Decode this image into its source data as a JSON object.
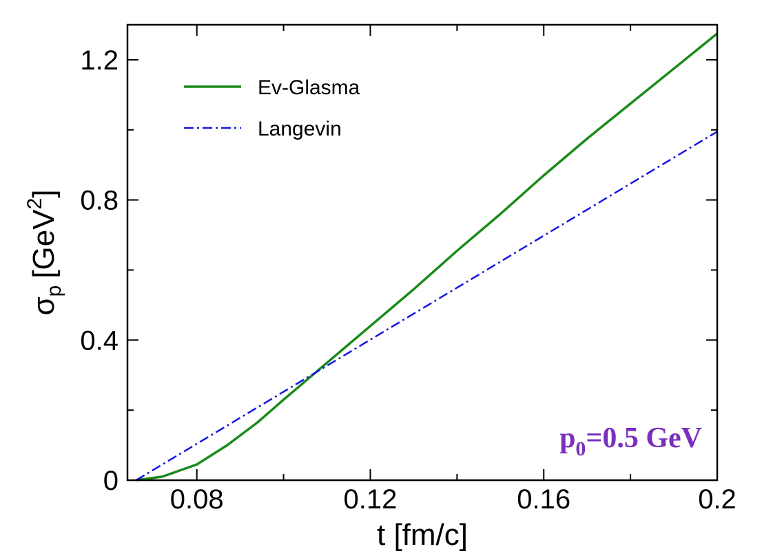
{
  "chart_data": {
    "type": "line",
    "xlabel": "t [fm/c]",
    "ylabel_main": "σ",
    "ylabel_sub": "p",
    "ylabel_unit": "[GeV",
    "ylabel_sup": "2",
    "ylabel_close": "]",
    "xlim": [
      0.064,
      0.2
    ],
    "ylim": [
      0,
      1.3
    ],
    "xticks": [
      0.08,
      0.12,
      0.16,
      0.2
    ],
    "xtick_labels": [
      "0.08",
      "0.12",
      "0.16",
      "0.2"
    ],
    "xminor": [
      0.1,
      0.14,
      0.18
    ],
    "yticks": [
      0,
      0.4,
      0.8,
      1.2
    ],
    "ytick_labels": [
      "0",
      "0.4",
      "0.8",
      "1.2"
    ],
    "yminor": [
      0.2,
      0.6,
      1.0
    ],
    "grid": false,
    "legend_position": "top-left",
    "series": [
      {
        "name": "Ev-Glasma",
        "color": "#1a8a1a",
        "style": "solid",
        "x": [
          0.066,
          0.072,
          0.08,
          0.087,
          0.094,
          0.1,
          0.11,
          0.12,
          0.13,
          0.14,
          0.15,
          0.16,
          0.17,
          0.18,
          0.19,
          0.2
        ],
        "y": [
          0,
          0.01,
          0.045,
          0.1,
          0.165,
          0.23,
          0.335,
          0.44,
          0.545,
          0.655,
          0.76,
          0.87,
          0.975,
          1.075,
          1.175,
          1.275
        ]
      },
      {
        "name": "Langevin",
        "color": "#1515e0",
        "style": "dashdot",
        "x": [
          0.066,
          0.2
        ],
        "y": [
          0,
          0.995
        ]
      }
    ],
    "annotation": {
      "main": "p",
      "sub": "0",
      "rest": "=0.5 GeV",
      "color": "#7a2fbf"
    }
  }
}
